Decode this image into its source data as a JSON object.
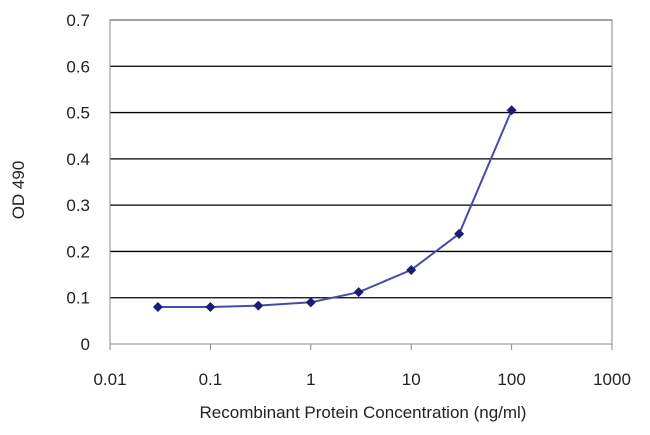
{
  "chart_data": {
    "type": "line",
    "title": "",
    "xlabel": "Recombinant Protein Concentration (ng/ml)",
    "ylabel": "OD 490",
    "x_scale": "log",
    "xlim": [
      0.01,
      1000
    ],
    "ylim": [
      0,
      0.7
    ],
    "x_ticks": [
      0.01,
      0.1,
      1,
      10,
      100,
      1000
    ],
    "x_tick_labels": [
      "0.01",
      "0.1",
      "1",
      "10",
      "100",
      "1000"
    ],
    "y_ticks": [
      0,
      0.1,
      0.2,
      0.3,
      0.4,
      0.5,
      0.6,
      0.7
    ],
    "y_tick_labels": [
      "0",
      "0.1",
      "0.2",
      "0.3",
      "0.4",
      "0.5",
      "0.6",
      "0.7"
    ],
    "grid": "horizontal",
    "legend": "none",
    "series": [
      {
        "x": [
          0.03,
          0.1,
          0.3,
          1,
          3,
          10,
          30,
          100
        ],
        "y": [
          0.08,
          0.08,
          0.083,
          0.09,
          0.112,
          0.16,
          0.238,
          0.505
        ]
      }
    ],
    "colors": {
      "line": "#4a4aa8",
      "marker": "#1c1c78",
      "grid": "#000000",
      "background": "#ffffff"
    }
  }
}
